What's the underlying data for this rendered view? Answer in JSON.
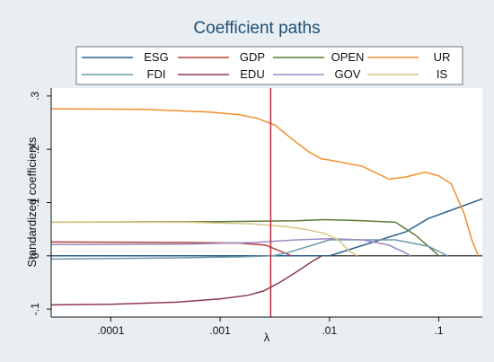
{
  "chart_data": {
    "type": "line",
    "title": "Coefficient paths",
    "xlabel": "λ",
    "ylabel": "Standardized coefficients",
    "x_scale": "log",
    "xlim": [
      2.85e-05,
      0.25
    ],
    "ylim": [
      -0.115,
      0.315
    ],
    "x_ticks": [
      {
        "value": 0.0001,
        "label": ".0001"
      },
      {
        "value": 0.001,
        "label": ".001"
      },
      {
        "value": 0.01,
        "label": ".01"
      },
      {
        "value": 0.1,
        "label": ".1"
      }
    ],
    "y_ticks": [
      {
        "value": 0.3,
        "label": ".3"
      },
      {
        "value": 0.2,
        "label": ".2"
      },
      {
        "value": 0.1,
        "label": ".1"
      },
      {
        "value": 0,
        "label": "0"
      },
      {
        "value": -0.1,
        "label": "-.1"
      }
    ],
    "vline": {
      "x": 0.0029,
      "color": "#c0273f"
    },
    "hline": {
      "y": 0
    },
    "legend_position": "top",
    "grid": false,
    "series": [
      {
        "name": "ESG",
        "color": "#2c5f8e",
        "points": [
          [
            2.85e-05,
            0.0
          ],
          [
            0.002,
            0.0
          ],
          [
            0.01,
            0.0
          ],
          [
            0.05,
            0.045
          ],
          [
            0.08,
            0.07
          ],
          [
            0.25,
            0.107
          ]
        ]
      },
      {
        "name": "GDP",
        "color": "#b5413b",
        "points": [
          [
            2.85e-05,
            0.026
          ],
          [
            0.0005,
            0.025
          ],
          [
            0.0015,
            0.024
          ],
          [
            0.0026,
            0.02
          ],
          [
            0.003,
            0.015
          ],
          [
            0.0045,
            0.0
          ]
        ]
      },
      {
        "name": "OPEN",
        "color": "#5f7a3a",
        "points": [
          [
            2.85e-05,
            0.063
          ],
          [
            0.001,
            0.064
          ],
          [
            0.005,
            0.066
          ],
          [
            0.009,
            0.068
          ],
          [
            0.02,
            0.066
          ],
          [
            0.04,
            0.063
          ],
          [
            0.06,
            0.04
          ],
          [
            0.08,
            0.018
          ],
          [
            0.1,
            0.0
          ]
        ]
      },
      {
        "name": "UR",
        "color": "#f28e2b",
        "points": [
          [
            2.85e-05,
            0.276
          ],
          [
            0.0002,
            0.275
          ],
          [
            0.0008,
            0.27
          ],
          [
            0.0015,
            0.265
          ],
          [
            0.0022,
            0.258
          ],
          [
            0.0032,
            0.245
          ],
          [
            0.0045,
            0.22
          ],
          [
            0.0065,
            0.195
          ],
          [
            0.0085,
            0.182
          ],
          [
            0.01,
            0.18
          ],
          [
            0.02,
            0.168
          ],
          [
            0.035,
            0.144
          ],
          [
            0.05,
            0.148
          ],
          [
            0.075,
            0.157
          ],
          [
            0.1,
            0.15
          ],
          [
            0.13,
            0.135
          ],
          [
            0.17,
            0.08
          ],
          [
            0.2,
            0.03
          ],
          [
            0.23,
            0.0
          ]
        ]
      },
      {
        "name": "FDI",
        "color": "#6a9aa6",
        "points": [
          [
            2.85e-05,
            -0.006
          ],
          [
            0.0003,
            -0.004
          ],
          [
            0.0015,
            -0.002
          ],
          [
            0.003,
            0.0
          ],
          [
            0.004,
            0.005
          ],
          [
            0.007,
            0.02
          ],
          [
            0.01,
            0.03
          ],
          [
            0.04,
            0.03
          ],
          [
            0.08,
            0.018
          ],
          [
            0.12,
            0.0
          ]
        ]
      },
      {
        "name": "EDU",
        "color": "#8b3a4a",
        "points": [
          [
            2.85e-05,
            -0.092
          ],
          [
            0.0001,
            -0.091
          ],
          [
            0.0004,
            -0.087
          ],
          [
            0.001,
            -0.081
          ],
          [
            0.0018,
            -0.074
          ],
          [
            0.0025,
            -0.066
          ],
          [
            0.0035,
            -0.05
          ],
          [
            0.005,
            -0.03
          ],
          [
            0.007,
            -0.01
          ],
          [
            0.0085,
            0.0
          ]
        ]
      },
      {
        "name": "GOV",
        "color": "#9c8ac4",
        "points": [
          [
            2.85e-05,
            0.021
          ],
          [
            0.0005,
            0.022
          ],
          [
            0.002,
            0.025
          ],
          [
            0.005,
            0.03
          ],
          [
            0.01,
            0.032
          ],
          [
            0.02,
            0.03
          ],
          [
            0.035,
            0.02
          ],
          [
            0.05,
            0.005
          ],
          [
            0.055,
            0.0
          ]
        ]
      },
      {
        "name": "IS",
        "color": "#d6c782",
        "points": [
          [
            2.85e-05,
            0.063
          ],
          [
            0.0005,
            0.063
          ],
          [
            0.002,
            0.06
          ],
          [
            0.004,
            0.055
          ],
          [
            0.006,
            0.05
          ],
          [
            0.009,
            0.042
          ],
          [
            0.012,
            0.03
          ],
          [
            0.015,
            0.01
          ],
          [
            0.018,
            0.0
          ]
        ]
      }
    ]
  }
}
